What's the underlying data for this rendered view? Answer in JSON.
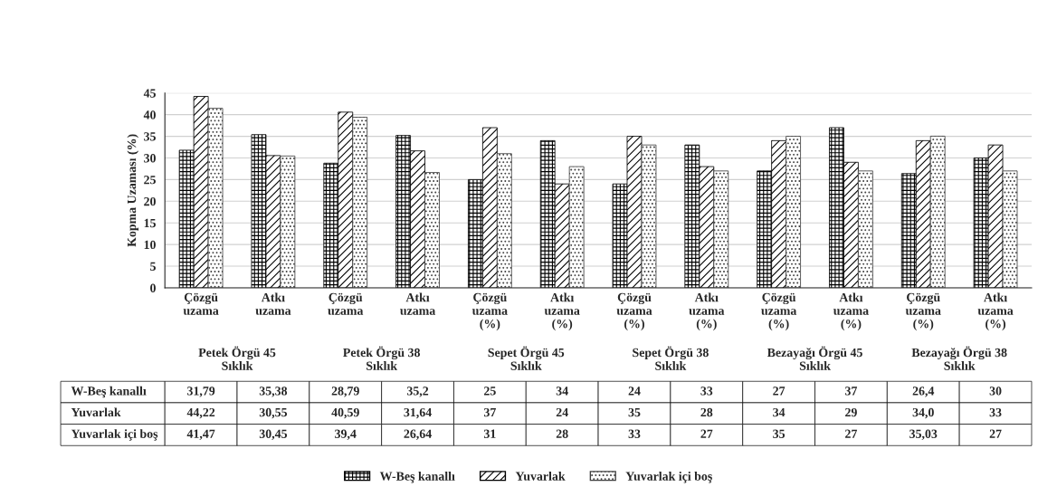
{
  "chart_data": {
    "type": "bar",
    "ylabel": "Kopma Uzaması (%)",
    "categories": [
      "Çözgü\nuzama",
      "Atkı\nuzama",
      "Çözgü\nuzama",
      "Atkı\nuzama",
      "Çözgü\nuzama\n(%)",
      "Atkı\nuzama\n(%)",
      "Çözgü\nuzama\n(%)",
      "Atkı\nuzama\n(%)",
      "Çözgü\nuzama\n(%)",
      "Atkı\nuzama\n(%)",
      "Çözgü\nuzama\n(%)",
      "Atkı\nuzama\n(%)"
    ],
    "annotations": [
      "Petek Örgü 45\nSıklık",
      "Petek Örgü 38\nSıklık",
      "Sepet Örgü 45\nSıklık",
      "Sepet Örgü 38\nSıklık",
      "Bezayağı Örgü 45\nSıklık",
      "Bezayağı Örgü 38\nSıklık"
    ],
    "series": [
      {
        "name": "W-Beş kanallı",
        "color": "#000000",
        "values": [
          31.79,
          35.38,
          28.79,
          35.2,
          25,
          34,
          24,
          33,
          27,
          37,
          26.4,
          30
        ],
        "value_labels": [
          "31,79",
          "35,38",
          "28,79",
          "35,2",
          "25",
          "34",
          "24",
          "33",
          "27",
          "37",
          "26,4",
          "30"
        ]
      },
      {
        "name": "Yuvarlak",
        "color": "#000000",
        "values": [
          44.22,
          30.55,
          40.59,
          31.64,
          37,
          24,
          35,
          28,
          34,
          29,
          34.0,
          33
        ],
        "value_labels": [
          "44,22",
          "30,55",
          "40,59",
          "31,64",
          "37",
          "24",
          "35",
          "28",
          "34",
          "29",
          "34,0",
          "33"
        ]
      },
      {
        "name": "Yuvarlak içi boş",
        "color": "#404040",
        "values": [
          41.47,
          30.45,
          39.4,
          26.64,
          31,
          28,
          33,
          27,
          35,
          27,
          35.03,
          27
        ],
        "value_labels": [
          "41,47",
          "30,45",
          "39,4",
          "26,64",
          "31",
          "28",
          "33",
          "27",
          "35",
          "27",
          "35,03",
          "27"
        ]
      }
    ],
    "ylim": [
      0,
      45
    ],
    "yticks": [
      0,
      5,
      10,
      15,
      20,
      25,
      30,
      35,
      40,
      45
    ],
    "grid": "y",
    "legend": "bottom"
  }
}
